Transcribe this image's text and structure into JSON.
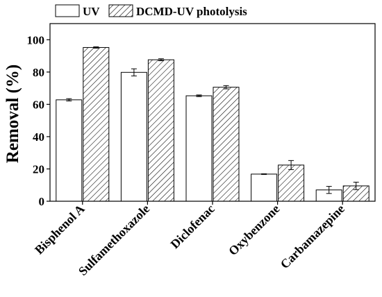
{
  "chart_data": {
    "type": "bar",
    "categories": [
      "Bisphenol A",
      "Sulfamethoxazole",
      "Diclofenac",
      "Oxybenzone",
      "Carbamazepine"
    ],
    "series": [
      {
        "name": "UV",
        "values": [
          62.8,
          79.8,
          65.3,
          16.8,
          7.0
        ],
        "errors": [
          0.7,
          2.2,
          0.5,
          0.2,
          2.2
        ],
        "pattern": "none"
      },
      {
        "name": "DCMD-UV photolysis",
        "values": [
          95.2,
          87.6,
          70.6,
          22.4,
          9.5
        ],
        "errors": [
          0.4,
          0.6,
          1.0,
          2.8,
          2.3
        ],
        "pattern": "diagonal-hatch"
      }
    ],
    "xlabel": "",
    "ylabel": "Removal (%)",
    "ylim": [
      0,
      110
    ],
    "yticks": [
      "0",
      "20",
      "40",
      "60",
      "80",
      "100"
    ],
    "ytick_values": [
      0,
      20,
      40,
      60,
      80,
      100
    ],
    "grid": false,
    "legend_position": "top-left",
    "colors": {
      "bar_fill": "#ffffff",
      "bar_stroke": "#000000",
      "hatch": "#000000"
    }
  }
}
